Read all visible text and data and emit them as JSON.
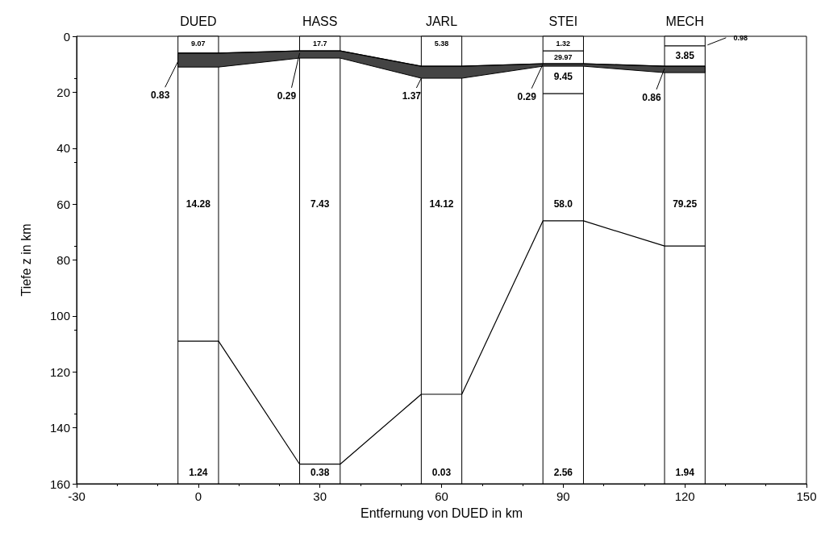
{
  "chart_data": {
    "type": "line",
    "xlabel": "Entfernung von DUED in km",
    "ylabel": "Tiefe z in km",
    "xlim": [
      -30,
      150
    ],
    "xticks": [
      -30,
      0,
      30,
      60,
      90,
      120,
      150
    ],
    "ylim": [
      160,
      0
    ],
    "yticks": [
      0,
      20,
      40,
      60,
      80,
      100,
      120,
      140,
      160
    ],
    "grid": false,
    "marker": "none",
    "line_style": "solid",
    "x": [
      -5,
      5,
      25,
      35,
      55,
      65,
      85,
      95,
      115,
      125
    ],
    "series": [
      {
        "color": "#000000",
        "values": [
          6,
          6,
          5.2,
          5.2,
          10.7,
          10.7,
          9.8,
          9.8,
          10.7,
          10.7
        ],
        "lower": [
          6,
          6,
          5.2,
          5.2,
          10.7,
          10.7,
          9.8,
          9.8,
          10.7,
          10.7
        ],
        "upper": [
          11,
          11,
          7.8,
          7.8,
          15,
          15,
          10.7,
          10.7,
          13,
          13
        ]
      },
      {
        "color": "#000000",
        "values": [
          109,
          109,
          153,
          153,
          128,
          128,
          66,
          66,
          75,
          75
        ]
      },
      {
        "color": "#000000",
        "x": [
          85,
          95
        ],
        "values": [
          5.2,
          5.2
        ]
      },
      {
        "color": "#000000",
        "x": [
          85,
          95
        ],
        "values": [
          20.5,
          20.5
        ]
      },
      {
        "color": "#000000",
        "x": [
          115,
          125
        ],
        "values": [
          3.4,
          3.4
        ]
      }
    ],
    "bands": [
      {
        "axis": "x",
        "from": -5,
        "to": 5,
        "label": "DUED",
        "color": "#ffffff"
      },
      {
        "axis": "x",
        "from": 25,
        "to": 35,
        "label": "HASS",
        "color": "#ffffff"
      },
      {
        "axis": "x",
        "from": 55,
        "to": 65,
        "label": "JARL",
        "color": "#ffffff"
      },
      {
        "axis": "x",
        "from": 85,
        "to": 95,
        "label": "STEI",
        "color": "#ffffff"
      },
      {
        "axis": "x",
        "from": 115,
        "to": 125,
        "label": "MECH",
        "color": "#ffffff"
      }
    ],
    "annotations": [
      {
        "text": "9.07",
        "x": 0,
        "y": 2.6
      },
      {
        "text": "17.7",
        "x": 30,
        "y": 2.6
      },
      {
        "text": "5.38",
        "x": 60,
        "y": 2.6
      },
      {
        "text": "1.32",
        "x": 90,
        "y": 2.6
      },
      {
        "text": "29.97",
        "x": 90,
        "y": 7.5
      },
      {
        "text": "9.45",
        "x": 90,
        "y": 14.5
      },
      {
        "text": "3.85",
        "x": 120,
        "y": 7
      },
      {
        "text": "0.98",
        "x": 125,
        "y": 3.4
      },
      {
        "text": "14.28",
        "x": 0,
        "y": 60
      },
      {
        "text": "7.43",
        "x": 30,
        "y": 60
      },
      {
        "text": "14.12",
        "x": 60,
        "y": 60
      },
      {
        "text": "58.0",
        "x": 90,
        "y": 60
      },
      {
        "text": "79.25",
        "x": 120,
        "y": 60
      },
      {
        "text": "1.24",
        "x": 0,
        "y": 156
      },
      {
        "text": "0.38",
        "x": 30,
        "y": 156
      },
      {
        "text": "0.03",
        "x": 60,
        "y": 156
      },
      {
        "text": "2.56",
        "x": 90,
        "y": 156
      },
      {
        "text": "1.94",
        "x": 120,
        "y": 156
      },
      {
        "text": "0.83",
        "x": -5,
        "y": 9
      },
      {
        "text": "0.29",
        "x": 25,
        "y": 6
      },
      {
        "text": "1.37",
        "x": 55,
        "y": 15
      },
      {
        "text": "0.29",
        "x": 85,
        "y": 10
      },
      {
        "text": "0.86",
        "x": 115,
        "y": 11.5
      }
    ]
  }
}
